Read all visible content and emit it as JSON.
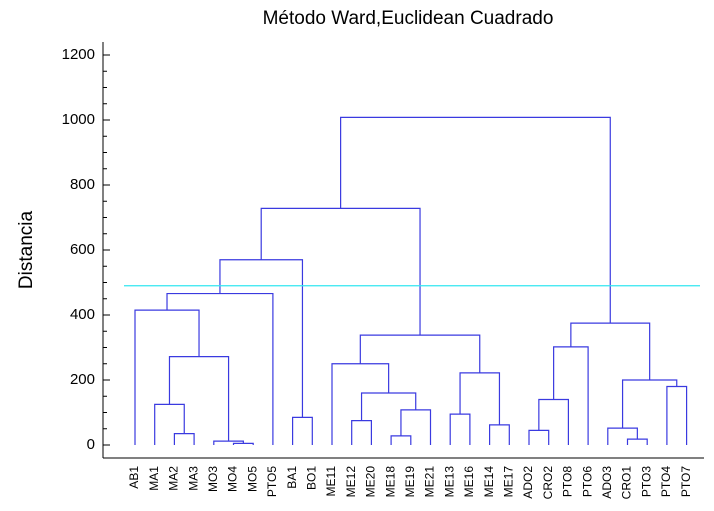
{
  "chart_data": {
    "type": "dendrogram",
    "title": "Método Ward,Euclidean Cuadrado",
    "y_label": "Distancia",
    "leaves": [
      "AB1",
      "MA1",
      "MA2",
      "MA3",
      "MO3",
      "MO4",
      "MO5",
      "PTO5",
      "BA1",
      "BO1",
      "ME11",
      "ME12",
      "ME20",
      "ME18",
      "ME19",
      "ME21",
      "ME13",
      "ME16",
      "ME14",
      "ME17",
      "ADO2",
      "CRO2",
      "PTO8",
      "PTO6",
      "ADO3",
      "CRO1",
      "PTO3",
      "PTO4",
      "PTO7"
    ],
    "merges": [
      {
        "children": [
          5,
          6
        ],
        "height": 5
      },
      {
        "children": [
          4,
          29
        ],
        "height": 12
      },
      {
        "children": [
          2,
          3
        ],
        "height": 35
      },
      {
        "children": [
          1,
          31
        ],
        "height": 125
      },
      {
        "children": [
          32,
          30
        ],
        "height": 272
      },
      {
        "children": [
          0,
          33
        ],
        "height": 415
      },
      {
        "children": [
          34,
          7
        ],
        "height": 466
      },
      {
        "children": [
          8,
          9
        ],
        "height": 85
      },
      {
        "children": [
          35,
          36
        ],
        "height": 570
      },
      {
        "children": [
          11,
          12
        ],
        "height": 75
      },
      {
        "children": [
          13,
          14
        ],
        "height": 28
      },
      {
        "children": [
          39,
          15
        ],
        "height": 108
      },
      {
        "children": [
          38,
          40
        ],
        "height": 160
      },
      {
        "children": [
          10,
          41
        ],
        "height": 250
      },
      {
        "children": [
          16,
          17
        ],
        "height": 95
      },
      {
        "children": [
          18,
          19
        ],
        "height": 62
      },
      {
        "children": [
          43,
          44
        ],
        "height": 222
      },
      {
        "children": [
          42,
          45
        ],
        "height": 338
      },
      {
        "children": [
          37,
          46
        ],
        "height": 728
      },
      {
        "children": [
          20,
          21
        ],
        "height": 45
      },
      {
        "children": [
          48,
          22
        ],
        "height": 140
      },
      {
        "children": [
          49,
          23
        ],
        "height": 302
      },
      {
        "children": [
          25,
          26
        ],
        "height": 18
      },
      {
        "children": [
          24,
          51
        ],
        "height": 52
      },
      {
        "children": [
          27,
          28
        ],
        "height": 180
      },
      {
        "children": [
          52,
          53
        ],
        "height": 200
      },
      {
        "children": [
          50,
          54
        ],
        "height": 375
      },
      {
        "children": [
          47,
          55
        ],
        "height": 1008
      }
    ],
    "color": "#3a3ae0",
    "cut_height": 490,
    "cut_color": "#33e6f0",
    "ylim": [
      -40,
      1240
    ],
    "yticks": [
      0,
      200,
      400,
      600,
      800,
      1000,
      1200
    ]
  }
}
